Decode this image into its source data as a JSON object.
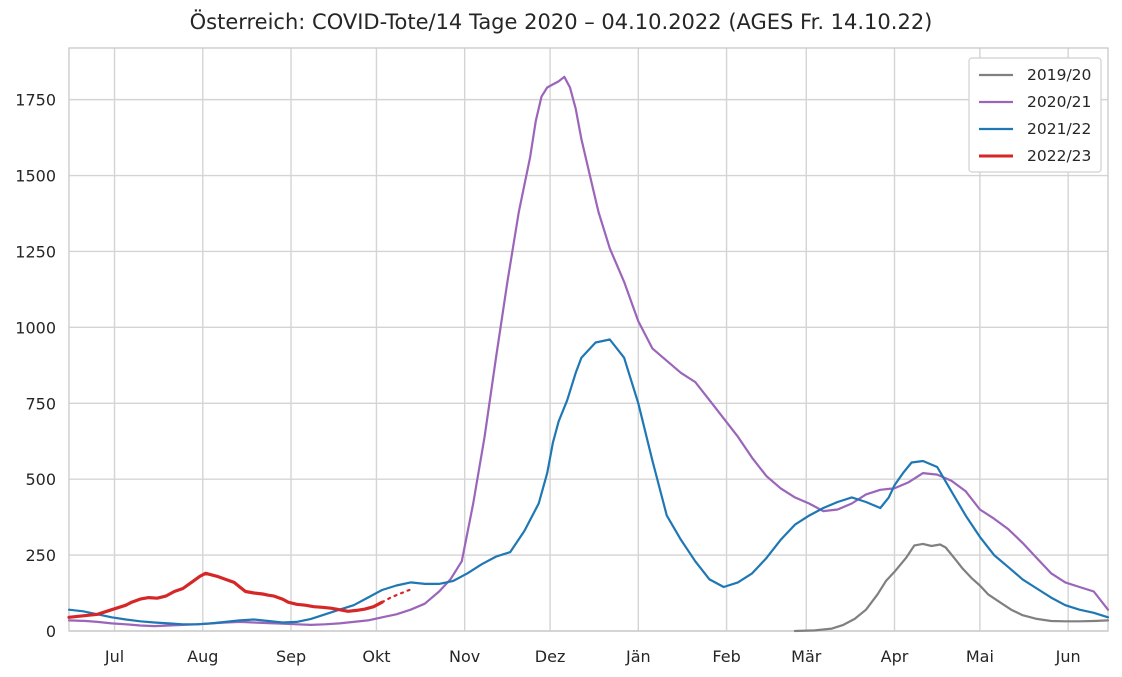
{
  "chart_data": {
    "type": "line",
    "title": "Österreich: COVID-Tote/14 Tage 2020 – 04.10.2022 (AGES Fr. 14.10.22)",
    "xlabel": "",
    "ylabel": "",
    "x_unit": "day of season (day 0 = 15 Jun, 365 = 15 Jun next year)",
    "xlim": [
      0,
      365
    ],
    "ylim": [
      0,
      1920
    ],
    "grid": true,
    "legend_position": "top-right",
    "categories": [
      "Jul",
      "Aug",
      "Sep",
      "Okt",
      "Nov",
      "Dez",
      "Jän",
      "Feb",
      "Mär",
      "Apr",
      "Mai",
      "Jun"
    ],
    "category_positions": [
      16,
      47,
      78,
      108,
      139,
      169,
      200,
      231,
      259,
      290,
      320,
      351
    ],
    "y_ticks": [
      0,
      250,
      500,
      750,
      1000,
      1250,
      1500,
      1750
    ],
    "series": [
      {
        "name": "2019/20",
        "color": "#808080",
        "x": [
          255,
          262,
          268,
          272,
          276,
          280,
          284,
          287,
          290,
          294,
          297,
          300,
          303,
          306,
          308,
          311,
          314,
          317,
          320,
          323,
          327,
          331,
          335,
          340,
          345,
          350,
          355,
          360,
          365
        ],
        "values": [
          0,
          2,
          8,
          20,
          40,
          70,
          120,
          165,
          195,
          240,
          282,
          287,
          280,
          285,
          275,
          240,
          205,
          175,
          150,
          120,
          95,
          70,
          52,
          40,
          33,
          32,
          32,
          33,
          35
        ]
      },
      {
        "name": "2020/21",
        "color": "#9b65b9",
        "x": [
          0,
          6,
          10,
          15,
          20,
          25,
          30,
          35,
          40,
          45,
          50,
          55,
          60,
          65,
          70,
          75,
          80,
          85,
          90,
          95,
          100,
          105,
          110,
          115,
          120,
          125,
          130,
          134,
          138,
          142,
          146,
          150,
          154,
          158,
          162,
          164,
          166,
          168,
          170,
          172,
          174,
          176,
          178,
          180,
          183,
          186,
          190,
          195,
          200,
          205,
          210,
          215,
          220,
          225,
          230,
          235,
          240,
          245,
          250,
          255,
          260,
          265,
          270,
          275,
          280,
          285,
          290,
          295,
          300,
          305,
          310,
          315,
          320,
          325,
          330,
          335,
          340,
          345,
          350,
          355,
          360,
          365
        ],
        "values": [
          35,
          33,
          30,
          25,
          22,
          18,
          16,
          18,
          20,
          22,
          25,
          28,
          30,
          28,
          26,
          24,
          22,
          20,
          22,
          25,
          30,
          35,
          45,
          55,
          70,
          90,
          130,
          170,
          230,
          420,
          640,
          900,
          1150,
          1380,
          1560,
          1680,
          1760,
          1790,
          1800,
          1810,
          1825,
          1790,
          1720,
          1620,
          1500,
          1380,
          1260,
          1150,
          1020,
          930,
          890,
          850,
          820,
          760,
          700,
          640,
          570,
          510,
          470,
          440,
          420,
          395,
          400,
          420,
          450,
          465,
          470,
          490,
          520,
          515,
          495,
          460,
          400,
          370,
          335,
          290,
          240,
          190,
          160,
          145,
          130,
          70
        ]
      },
      {
        "name": "2021/22",
        "color": "#1f77b4",
        "x": [
          0,
          5,
          10,
          15,
          20,
          25,
          30,
          35,
          40,
          45,
          50,
          55,
          60,
          65,
          70,
          75,
          80,
          85,
          90,
          95,
          100,
          105,
          110,
          115,
          120,
          125,
          130,
          135,
          140,
          145,
          150,
          155,
          160,
          165,
          168,
          170,
          172,
          175,
          178,
          180,
          185,
          190,
          195,
          200,
          205,
          210,
          215,
          220,
          225,
          230,
          235,
          240,
          245,
          250,
          255,
          260,
          265,
          270,
          275,
          280,
          285,
          288,
          290,
          293,
          296,
          300,
          305,
          310,
          315,
          320,
          325,
          330,
          335,
          340,
          345,
          350,
          355,
          360,
          365
        ],
        "values": [
          70,
          65,
          55,
          45,
          38,
          32,
          28,
          25,
          22,
          22,
          25,
          30,
          35,
          38,
          33,
          28,
          30,
          40,
          55,
          70,
          85,
          110,
          135,
          150,
          160,
          155,
          155,
          165,
          190,
          220,
          245,
          260,
          330,
          420,
          520,
          620,
          690,
          760,
          850,
          900,
          950,
          960,
          900,
          750,
          560,
          380,
          300,
          230,
          170,
          145,
          160,
          190,
          240,
          300,
          350,
          380,
          405,
          425,
          440,
          425,
          405,
          440,
          480,
          520,
          555,
          560,
          540,
          460,
          380,
          310,
          250,
          210,
          170,
          140,
          110,
          85,
          70,
          60,
          45
        ]
      },
      {
        "name": "2022/23",
        "color": "#d62728",
        "x": [
          0,
          5,
          10,
          15,
          20,
          22,
          25,
          28,
          31,
          34,
          37,
          40,
          43,
          46,
          48,
          50,
          52,
          55,
          58,
          60,
          62,
          65,
          68,
          70,
          72,
          75,
          77,
          80,
          83,
          86,
          89,
          92,
          95,
          98,
          101,
          104,
          107,
          110
        ],
        "values": [
          45,
          50,
          55,
          70,
          85,
          95,
          105,
          110,
          108,
          115,
          130,
          140,
          160,
          180,
          190,
          185,
          180,
          170,
          160,
          145,
          130,
          125,
          122,
          118,
          115,
          105,
          95,
          88,
          85,
          80,
          78,
          75,
          70,
          65,
          68,
          72,
          80,
          95
        ]
      },
      {
        "name": "",
        "color": "#d62728",
        "dashed": true,
        "x": [
          110,
          113,
          116,
          119,
          121
        ],
        "values": [
          95,
          110,
          122,
          133,
          140
        ]
      }
    ]
  }
}
